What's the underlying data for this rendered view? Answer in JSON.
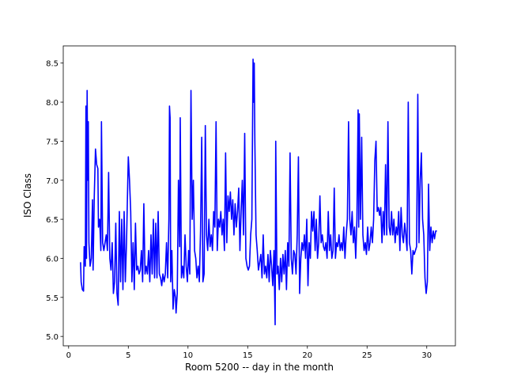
{
  "chart_data": {
    "type": "line",
    "color": "#0000ff",
    "x_label": "Room 5200 -- day in the month",
    "y_label": "ISO Class",
    "xlim": [
      -0.45,
      32.4
    ],
    "ylim": [
      4.88,
      8.72
    ],
    "xticks": [
      0,
      5,
      10,
      15,
      20,
      25,
      30
    ],
    "yticks": [
      {
        "value": 5.0,
        "label": "5.0"
      },
      5.5,
      {
        "value": 6.0,
        "label": "6.0"
      },
      6.5,
      {
        "value": 7.0,
        "label": "7.0"
      },
      7.5,
      {
        "value": 8.0,
        "label": "8.0"
      },
      8.5
    ],
    "x": [
      1.0,
      1.05,
      1.15,
      1.25,
      1.3,
      1.4,
      1.45,
      1.5,
      1.55,
      1.6,
      1.65,
      1.7,
      1.8,
      1.9,
      2.0,
      2.05,
      2.15,
      2.25,
      2.35,
      2.45,
      2.5,
      2.6,
      2.7,
      2.75,
      2.85,
      2.95,
      3.05,
      3.15,
      3.25,
      3.35,
      3.45,
      3.55,
      3.65,
      3.75,
      3.85,
      3.95,
      4.05,
      4.15,
      4.25,
      4.35,
      4.45,
      4.55,
      4.65,
      4.75,
      4.85,
      4.95,
      5.0,
      5.1,
      5.2,
      5.3,
      5.4,
      5.5,
      5.6,
      5.7,
      5.8,
      5.9,
      6.0,
      6.1,
      6.2,
      6.3,
      6.4,
      6.5,
      6.6,
      6.7,
      6.8,
      6.9,
      7.0,
      7.1,
      7.2,
      7.3,
      7.4,
      7.5,
      7.6,
      7.7,
      7.8,
      7.9,
      8.0,
      8.1,
      8.2,
      8.3,
      8.4,
      8.45,
      8.5,
      8.55,
      8.65,
      8.75,
      8.85,
      8.95,
      9.0,
      9.1,
      9.2,
      9.3,
      9.35,
      9.45,
      9.55,
      9.65,
      9.75,
      9.85,
      9.95,
      10.05,
      10.15,
      10.25,
      10.35,
      10.45,
      10.55,
      10.65,
      10.75,
      10.85,
      10.95,
      11.05,
      11.15,
      11.25,
      11.35,
      11.45,
      11.55,
      11.65,
      11.75,
      11.85,
      11.95,
      12.05,
      12.15,
      12.25,
      12.35,
      12.45,
      12.55,
      12.65,
      12.75,
      12.85,
      12.95,
      13.05,
      13.15,
      13.25,
      13.35,
      13.45,
      13.55,
      13.65,
      13.75,
      13.85,
      13.95,
      14.05,
      14.15,
      14.25,
      14.35,
      14.45,
      14.55,
      14.65,
      14.75,
      14.85,
      14.95,
      15.05,
      15.15,
      15.25,
      15.35,
      15.45,
      15.5,
      15.55,
      15.6,
      15.7,
      15.8,
      15.9,
      16.0,
      16.1,
      16.2,
      16.3,
      16.4,
      16.5,
      16.6,
      16.7,
      16.8,
      16.9,
      17.0,
      17.1,
      17.2,
      17.3,
      17.35,
      17.45,
      17.55,
      17.65,
      17.75,
      17.85,
      17.95,
      18.05,
      18.15,
      18.25,
      18.35,
      18.45,
      18.55,
      18.65,
      18.75,
      18.85,
      18.95,
      19.05,
      19.15,
      19.25,
      19.35,
      19.45,
      19.55,
      19.65,
      19.75,
      19.85,
      19.95,
      20.05,
      20.15,
      20.25,
      20.35,
      20.45,
      20.55,
      20.65,
      20.75,
      20.85,
      20.95,
      21.05,
      21.15,
      21.25,
      21.35,
      21.45,
      21.55,
      21.65,
      21.75,
      21.85,
      21.95,
      22.05,
      22.15,
      22.25,
      22.35,
      22.45,
      22.55,
      22.65,
      22.75,
      22.85,
      22.95,
      23.05,
      23.15,
      23.25,
      23.35,
      23.45,
      23.55,
      23.65,
      23.75,
      23.85,
      23.95,
      24.05,
      24.15,
      24.25,
      24.3,
      24.35,
      24.45,
      24.55,
      24.65,
      24.75,
      24.85,
      24.95,
      25.05,
      25.15,
      25.25,
      25.35,
      25.45,
      25.55,
      25.65,
      25.75,
      25.85,
      25.95,
      26.05,
      26.15,
      26.25,
      26.35,
      26.45,
      26.55,
      26.65,
      26.75,
      26.85,
      26.95,
      27.05,
      27.15,
      27.25,
      27.35,
      27.45,
      27.55,
      27.65,
      27.75,
      27.85,
      27.95,
      28.05,
      28.15,
      28.25,
      28.35,
      28.45,
      28.55,
      28.65,
      28.75,
      28.85,
      28.95,
      29.05,
      29.15,
      29.25,
      29.35,
      29.45,
      29.55,
      29.65,
      29.75,
      29.85,
      29.95,
      30.05,
      30.15,
      30.25,
      30.35,
      30.45,
      30.55,
      30.65,
      30.75,
      30.85
    ],
    "values": [
      5.95,
      5.7,
      5.6,
      5.58,
      6.15,
      5.9,
      7.95,
      6.0,
      8.15,
      7.0,
      7.75,
      6.2,
      5.9,
      6.0,
      6.75,
      5.85,
      6.8,
      7.4,
      7.2,
      7.15,
      6.4,
      6.5,
      6.1,
      7.75,
      6.2,
      6.1,
      6.2,
      6.3,
      6.1,
      7.1,
      6.0,
      5.85,
      6.2,
      5.55,
      5.7,
      6.45,
      5.55,
      5.4,
      6.6,
      5.7,
      6.5,
      5.6,
      6.6,
      5.7,
      6.2,
      6.95,
      7.3,
      7.0,
      6.6,
      5.7,
      6.2,
      5.6,
      6.45,
      5.85,
      5.9,
      5.8,
      5.85,
      6.1,
      5.7,
      6.7,
      5.8,
      5.9,
      5.8,
      6.1,
      5.7,
      6.3,
      5.8,
      6.5,
      5.75,
      6.45,
      5.75,
      6.6,
      5.8,
      5.75,
      5.65,
      5.8,
      5.7,
      5.8,
      6.2,
      5.75,
      6.5,
      7.95,
      7.8,
      5.7,
      6.1,
      5.35,
      5.6,
      5.5,
      5.3,
      5.55,
      7.0,
      6.15,
      7.8,
      5.75,
      5.9,
      5.75,
      6.3,
      5.9,
      5.7,
      6.1,
      5.8,
      8.15,
      6.5,
      7.0,
      6.1,
      6.0,
      5.75,
      5.9,
      5.7,
      6.35,
      7.55,
      5.7,
      5.8,
      7.7,
      6.3,
      6.1,
      6.5,
      6.15,
      6.3,
      6.1,
      6.6,
      6.4,
      7.75,
      6.1,
      6.5,
      6.4,
      6.6,
      6.3,
      6.5,
      6.1,
      7.35,
      6.2,
      6.8,
      6.6,
      6.85,
      6.5,
      6.75,
      6.3,
      6.7,
      6.4,
      6.6,
      6.9,
      6.1,
      6.6,
      7.0,
      6.3,
      7.6,
      6.0,
      5.9,
      5.85,
      5.9,
      6.3,
      6.5,
      8.55,
      8.0,
      8.5,
      7.5,
      6.3,
      6.1,
      5.85,
      5.95,
      6.05,
      5.75,
      6.3,
      5.8,
      5.9,
      5.75,
      6.05,
      5.7,
      6.1,
      5.9,
      5.65,
      6.1,
      5.15,
      7.5,
      5.8,
      5.9,
      5.6,
      6.0,
      5.7,
      6.05,
      5.8,
      6.1,
      5.6,
      6.2,
      5.9,
      7.35,
      6.0,
      5.8,
      6.1,
      6.05,
      5.8,
      6.3,
      7.3,
      5.55,
      6.0,
      6.2,
      6.1,
      6.3,
      6.0,
      6.5,
      5.65,
      6.2,
      6.0,
      6.6,
      6.35,
      6.6,
      6.1,
      6.5,
      6.0,
      6.2,
      6.8,
      6.2,
      6.3,
      6.15,
      6.1,
      6.2,
      6.0,
      6.6,
      6.1,
      6.3,
      6.0,
      6.1,
      6.9,
      6.0,
      6.2,
      6.15,
      6.3,
      6.1,
      6.2,
      6.1,
      6.4,
      6.0,
      6.3,
      6.5,
      7.75,
      6.5,
      6.3,
      6.6,
      6.2,
      6.4,
      6.0,
      6.5,
      7.9,
      6.4,
      7.85,
      6.5,
      7.55,
      6.3,
      6.1,
      6.2,
      6.05,
      6.4,
      6.1,
      6.2,
      6.4,
      6.2,
      6.5,
      7.25,
      7.5,
      6.6,
      6.65,
      6.55,
      6.65,
      6.2,
      6.6,
      6.3,
      7.2,
      6.3,
      7.75,
      6.4,
      6.3,
      6.6,
      6.3,
      6.5,
      6.2,
      6.4,
      6.3,
      6.6,
      6.1,
      6.65,
      6.3,
      6.2,
      6.45,
      6.3,
      6.1,
      8.0,
      6.2,
      6.1,
      5.8,
      6.1,
      6.05,
      6.1,
      6.15,
      8.1,
      6.2,
      7.0,
      7.35,
      6.5,
      6.3,
      5.75,
      5.55,
      5.7,
      6.95,
      6.1,
      6.4,
      6.2,
      6.35,
      6.25,
      6.35,
      6.35
    ]
  }
}
